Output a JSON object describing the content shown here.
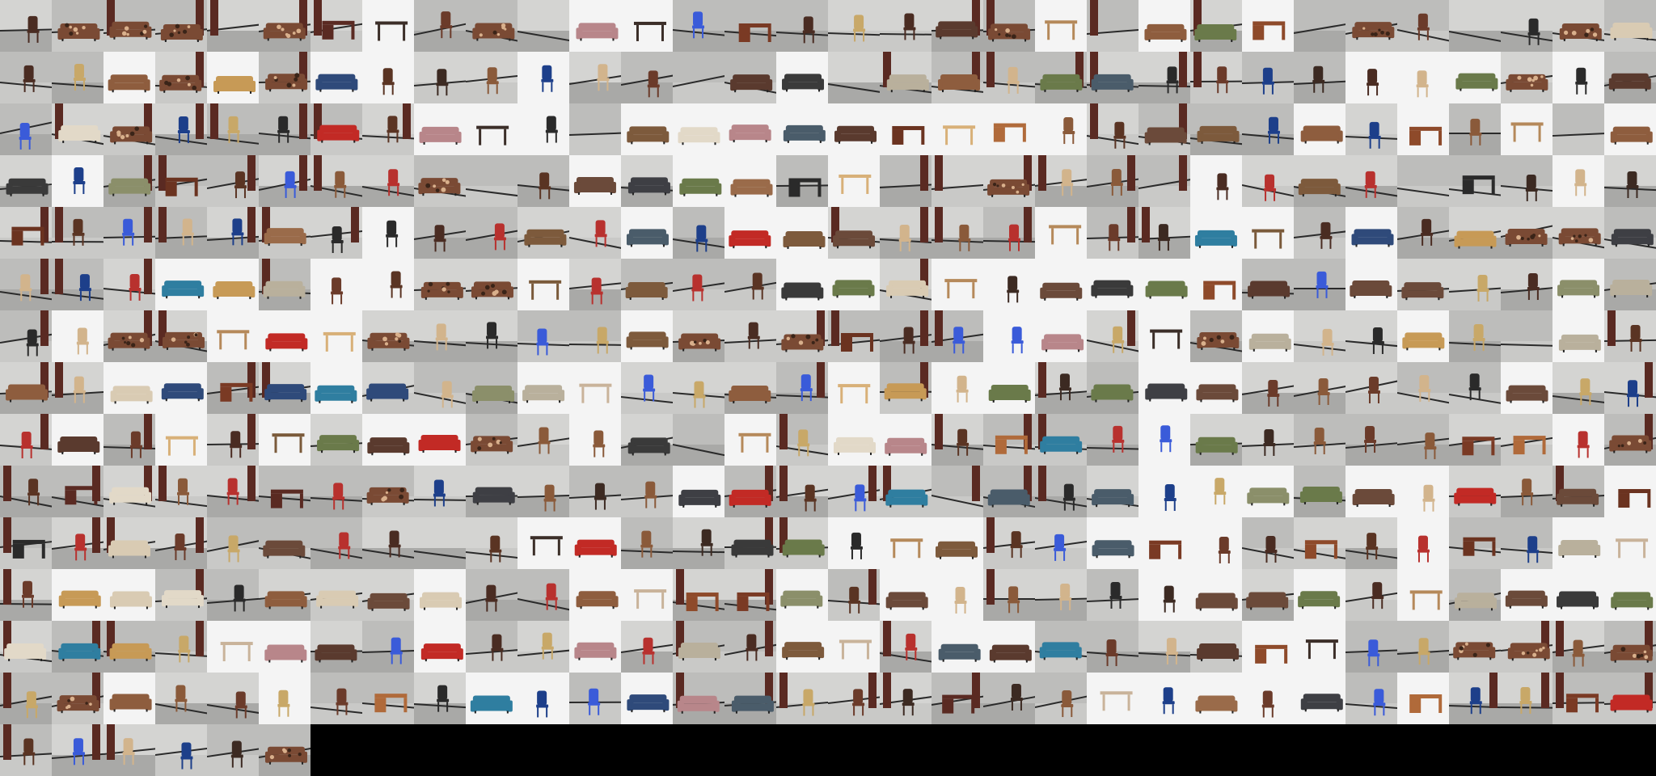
{
  "grid": {
    "columns": 32,
    "rows": 15,
    "count": 456
  },
  "palette": {
    "wall_light": "#d4d4d2",
    "wall_mid": "#bdbdbb",
    "floor_light": "#c9c9c7",
    "floor_mid": "#a9a9a7",
    "studio_white": "#f4f4f4",
    "black_fill": "#000000"
  },
  "tiles": [
    "room-chair",
    "floral-sofa",
    "floral-sofa",
    "floral-sofa",
    "room-empty",
    "floral-sofa",
    "room-desk",
    "studio-table",
    "room-chair",
    "floral-loveseat",
    "room-empty",
    "studio-sofa",
    "studio-table",
    "room-chair",
    "room-desk",
    "room-chair",
    "room-chair",
    "room-chair",
    "room-sofa",
    "floral-sofa",
    "studio-table",
    "room-empty",
    "studio-sofa",
    "room-sofa",
    "studio-desk",
    "room-empty",
    "floral-sofa",
    "room-chair",
    "room-empty",
    "room-chair",
    "floral-sofa",
    "room-sofa",
    "room-chair",
    "room-chair",
    "studio-sofa",
    "floral-sofa",
    "studio-sofa",
    "floral-sofa",
    "studio-sofa",
    "studio-chair",
    "room-chair",
    "room-chair",
    "studio-chair",
    "room-chair",
    "room-chair",
    "room-empty",
    "room-sofa",
    "studio-sofa",
    "room-empty",
    "room-sofa",
    "room-sofa",
    "room-chair",
    "room-sofa",
    "room-sofa",
    "room-chair",
    "room-chair",
    "room-chair",
    "room-chair",
    "studio-chair",
    "studio-chair",
    "studio-sofa",
    "floral-sofa",
    "studio-chair",
    "room-sofa",
    "room-chair",
    "room-sofa",
    "floral-sofa",
    "room-chair",
    "room-chair",
    "room-chair",
    "room-sofa",
    "room-chair",
    "studio-sofa",
    "studio-table",
    "studio-chair",
    "room-empty",
    "studio-sofa",
    "studio-sofa",
    "studio-sofa",
    "studio-sofa",
    "studio-sofa",
    "studio-desk",
    "studio-table",
    "studio-desk",
    "studio-chair",
    "room-chair",
    "room-sofa",
    "room-sofa",
    "room-chair",
    "studio-sofa",
    "room-chair",
    "studio-desk",
    "room-chair",
    "studio-table",
    "room-empty",
    "studio-sofa",
    "room-sofa",
    "studio-chair",
    "room-sofa",
    "room-desk",
    "room-chair",
    "room-chair",
    "room-chair",
    "room-chair",
    "floral-sofa",
    "room-empty",
    "room-chair",
    "studio-sofa",
    "room-sofa",
    "studio-sofa",
    "studio-sofa",
    "room-desk",
    "studio-table",
    "room-empty",
    "room-empty",
    "floral-sofa",
    "room-chair",
    "room-chair",
    "room-empty",
    "studio-chair",
    "room-chair",
    "room-sofa",
    "room-chair",
    "room-empty",
    "room-desk",
    "room-chair",
    "studio-chair",
    "room-chair",
    "room-desk",
    "room-chair",
    "room-chair",
    "room-chair",
    "room-chair",
    "room-sofa",
    "room-chair",
    "studio-chair",
    "room-chair",
    "room-chair",
    "room-sofa",
    "room-chair",
    "studio-sofa",
    "room-chair",
    "studio-sofa",
    "studio-sofa",
    "room-sofa",
    "room-chair",
    "room-chair",
    "room-chair",
    "studio-table",
    "room-chair",
    "room-chair",
    "studio-sofa",
    "studio-table",
    "room-chair",
    "studio-sofa",
    "room-chair",
    "room-sofa",
    "floral-sofa",
    "floral-sofa",
    "room-sofa",
    "room-chair",
    "room-chair",
    "room-chair",
    "studio-sofa",
    "studio-sofa",
    "room-sofa",
    "studio-chair",
    "studio-chair",
    "floral-sofa",
    "floral-sofa",
    "studio-table",
    "room-chair",
    "room-sofa",
    "room-chair",
    "room-chair",
    "studio-sofa",
    "studio-sofa",
    "room-sofa",
    "studio-table",
    "studio-chair",
    "studio-sofa",
    "studio-sofa",
    "studio-sofa",
    "studio-desk",
    "room-sofa",
    "room-chair",
    "studio-sofa",
    "room-sofa",
    "room-chair",
    "room-chair",
    "studio-sofa",
    "room-sofa",
    "room-chair",
    "studio-chair",
    "floral-sofa",
    "floral-sofa",
    "studio-table",
    "studio-sofa",
    "studio-table",
    "floral-sofa",
    "room-chair",
    "room-chair",
    "room-chair",
    "room-chair",
    "studio-sofa",
    "floral-sofa",
    "room-chair",
    "floral-sofa",
    "room-desk",
    "room-chair",
    "room-chair",
    "studio-chair",
    "studio-sofa",
    "room-chair",
    "studio-table",
    "floral-sofa",
    "studio-sofa",
    "room-chair",
    "room-chair",
    "studio-sofa",
    "room-chair",
    "room-empty",
    "studio-sofa",
    "room-chair",
    "room-sofa",
    "room-chair",
    "studio-sofa",
    "studio-sofa",
    "room-desk",
    "room-sofa",
    "studio-sofa",
    "room-sofa",
    "room-chair",
    "room-sofa",
    "studio-sofa",
    "studio-table",
    "room-chair",
    "room-chair",
    "room-sofa",
    "room-chair",
    "studio-table",
    "room-sofa",
    "studio-chair",
    "studio-sofa",
    "room-chair",
    "room-sofa",
    "studio-sofa",
    "studio-sofa",
    "room-chair",
    "room-chair",
    "room-chair",
    "room-chair",
    "room-chair",
    "studio-sofa",
    "room-chair",
    "room-chair",
    "room-chair",
    "studio-sofa",
    "room-chair",
    "studio-table",
    "room-chair",
    "studio-table",
    "room-sofa",
    "studio-sofa",
    "studio-sofa",
    "floral-sofa",
    "room-chair",
    "studio-chair",
    "room-sofa",
    "room-empty",
    "studio-table",
    "room-chair",
    "studio-sofa",
    "studio-sofa",
    "room-chair",
    "room-desk",
    "room-sofa",
    "room-chair",
    "studio-chair",
    "room-sofa",
    "room-chair",
    "room-chair",
    "room-chair",
    "room-chair",
    "room-desk",
    "room-desk",
    "studio-chair",
    "floral-sofa",
    "room-chair",
    "room-desk",
    "room-sofa",
    "room-chair",
    "room-chair",
    "room-desk",
    "room-chair",
    "floral-sofa",
    "room-chair",
    "room-sofa",
    "room-chair",
    "room-chair",
    "room-chair",
    "studio-sofa",
    "room-sofa",
    "room-chair",
    "room-chair",
    "room-sofa",
    "room-empty",
    "room-sofa",
    "room-chair",
    "room-sofa",
    "studio-chair",
    "studio-chair",
    "studio-sofa",
    "room-sofa",
    "studio-sofa",
    "studio-chair",
    "room-sofa",
    "room-chair",
    "room-sofa",
    "studio-desk",
    "room-desk",
    "room-chair",
    "room-sofa",
    "room-chair",
    "room-chair",
    "room-sofa",
    "room-chair",
    "room-chair",
    "room-empty",
    "room-chair",
    "studio-table",
    "studio-sofa",
    "room-chair",
    "room-chair",
    "room-sofa",
    "room-sofa",
    "studio-chair",
    "studio-table",
    "studio-sofa",
    "room-chair",
    "room-chair",
    "studio-sofa",
    "studio-desk",
    "studio-chair",
    "room-chair",
    "room-desk",
    "room-chair",
    "studio-chair",
    "room-desk",
    "room-chair",
    "studio-sofa",
    "studio-table",
    "room-chair",
    "studio-sofa",
    "studio-sofa",
    "room-sofa",
    "room-chair",
    "room-sofa",
    "room-sofa",
    "room-sofa",
    "studio-sofa",
    "room-chair",
    "room-chair",
    "studio-sofa",
    "studio-table",
    "room-desk",
    "room-desk",
    "studio-sofa",
    "room-chair",
    "studio-sofa",
    "studio-chair",
    "room-chair",
    "room-chair",
    "room-chair",
    "studio-chair",
    "studio-sofa",
    "room-sofa",
    "studio-sofa",
    "room-chair",
    "studio-table",
    "room-sofa",
    "studio-sofa",
    "studio-sofa",
    "studio-sofa",
    "room-sofa",
    "room-sofa",
    "room-sofa",
    "room-chair",
    "studio-table",
    "studio-sofa",
    "room-sofa",
    "room-chair",
    "studio-sofa",
    "room-chair",
    "room-chair",
    "studio-sofa",
    "room-chair",
    "room-sofa",
    "room-chair",
    "studio-sofa",
    "studio-table",
    "room-chair",
    "studio-sofa",
    "studio-sofa",
    "room-sofa",
    "room-chair",
    "room-chair",
    "room-sofa",
    "studio-desk",
    "studio-table",
    "room-chair",
    "room-chair",
    "floral-sofa",
    "floral-sofa",
    "room-chair",
    "floral-sofa",
    "room-chair",
    "floral-sofa",
    "studio-sofa",
    "room-chair",
    "room-chair",
    "studio-chair",
    "room-chair",
    "room-desk",
    "room-chair",
    "studio-sofa",
    "studio-chair",
    "room-chair",
    "studio-sofa",
    "room-sofa",
    "room-sofa",
    "room-chair",
    "room-chair",
    "room-chair",
    "room-desk",
    "room-chair",
    "room-chair",
    "studio-table",
    "studio-chair",
    "studio-sofa",
    "studio-chair",
    "studio-sofa",
    "room-chair",
    "studio-desk",
    "room-chair",
    "room-chair",
    "room-desk",
    "room-sofa",
    "room-chair",
    "room-chair",
    "room-chair",
    "room-chair",
    "room-chair",
    "floral-sofa"
  ]
}
